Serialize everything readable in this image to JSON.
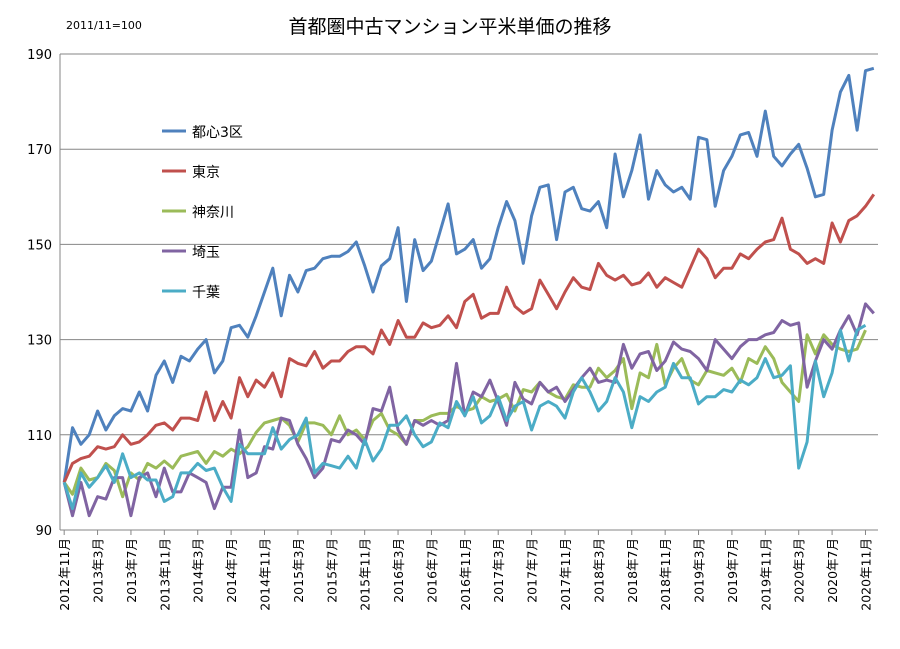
{
  "note": "2011/11=100",
  "chart_data": {
    "type": "line",
    "title": "首都圏中古マンション平米単価の推移",
    "ylim": [
      90,
      190
    ],
    "yticks": [
      90,
      110,
      130,
      150,
      170,
      190
    ],
    "xticks": [
      "2012年11月",
      "2013年3月",
      "2013年7月",
      "2013年11月",
      "2014年3月",
      "2014年7月",
      "2014年11月",
      "2015年3月",
      "2015年7月",
      "2015年11月",
      "2016年3月",
      "2016年7月",
      "2016年11月",
      "2017年3月",
      "2017年7月",
      "2017年11月",
      "2018年3月",
      "2018年7月",
      "2018年11月",
      "2019年3月",
      "2019年7月",
      "2019年11月",
      "2020年3月",
      "2020年7月",
      "2020年11月"
    ],
    "legend_position": "upper-left",
    "series": [
      {
        "name": "都心3区",
        "color": "#4F81BD",
        "values": [
          100,
          111.5,
          108,
          110,
          115,
          111,
          114,
          115.5,
          115,
          119,
          115,
          122.5,
          125.5,
          121,
          126.5,
          125.5,
          128,
          130,
          123,
          125.5,
          132.5,
          133,
          130.5,
          135,
          140,
          145,
          135,
          143.5,
          140,
          144.5,
          145,
          147,
          147.5,
          147.5,
          148.5,
          150.5,
          145.5,
          140,
          145.5,
          147,
          153.5,
          138,
          151,
          144.5,
          146.5,
          152.5,
          158.5,
          148,
          149,
          151,
          145,
          147,
          153.5,
          159,
          155,
          146,
          156,
          162,
          162.5,
          151,
          161,
          162,
          157.5,
          157,
          159,
          153.5,
          169,
          160,
          165.5,
          173,
          159.5,
          165.5,
          162.5,
          161,
          162,
          159.5,
          172.5,
          172,
          158,
          165.5,
          168.5,
          173,
          173.5,
          168.5,
          178,
          168.5,
          166.5,
          169,
          171,
          166,
          160,
          160.5,
          174,
          182,
          185.5,
          174,
          186.5,
          187
        ]
      },
      {
        "name": "東京",
        "color": "#C0504D",
        "values": [
          100,
          104,
          105,
          105.5,
          107.5,
          107,
          107.5,
          110,
          108,
          108.5,
          110,
          112,
          112.5,
          111,
          113.5,
          113.5,
          113,
          119,
          113,
          117,
          113.5,
          122,
          118,
          121.5,
          120,
          123,
          118,
          126,
          125,
          124.5,
          127.5,
          124,
          125.5,
          125.5,
          127.5,
          128.5,
          128.5,
          127,
          132,
          129,
          134,
          130.5,
          130.5,
          133.5,
          132.5,
          133,
          135,
          132.5,
          138,
          139.5,
          134.5,
          135.5,
          135.5,
          141,
          137,
          135.5,
          136.5,
          142.5,
          139.5,
          136.5,
          140,
          143,
          141,
          140.5,
          146,
          143.5,
          142.5,
          143.5,
          141.5,
          142,
          144,
          141,
          143,
          142,
          141,
          145,
          149,
          147,
          143,
          145,
          145,
          148,
          147,
          149,
          150.5,
          151,
          155.5,
          149,
          148,
          146,
          147,
          146,
          154.5,
          150.5,
          155,
          156,
          158,
          160.5
        ]
      },
      {
        "name": "神奈川",
        "color": "#9BBB59",
        "values": [
          100,
          97.5,
          103,
          100.5,
          101,
          104,
          102.5,
          97,
          102,
          100.5,
          104,
          103,
          104.5,
          103,
          105.5,
          106,
          106.5,
          104,
          106.5,
          105.5,
          107,
          106,
          107.5,
          110.5,
          112.5,
          113,
          113.5,
          112,
          108.5,
          112.5,
          112.5,
          112,
          110,
          114,
          110,
          111,
          109,
          113,
          114.5,
          111,
          110,
          108,
          113,
          113,
          114,
          114.5,
          114.5,
          116,
          115,
          115.5,
          118,
          117,
          117.5,
          118.5,
          115,
          119.5,
          119,
          121,
          119,
          118,
          117.5,
          120.5,
          120,
          120,
          124,
          122,
          123.5,
          126,
          115.5,
          123,
          122,
          129,
          120.5,
          124,
          126,
          121.5,
          120.5,
          123.5,
          123,
          122.5,
          124,
          121,
          126,
          125,
          128.5,
          126,
          121,
          119,
          117,
          131,
          127,
          131,
          129,
          128,
          127.5,
          128,
          132
        ]
      },
      {
        "name": "埼玉",
        "color": "#8064A2",
        "values": [
          100,
          93,
          100,
          93,
          97,
          96.5,
          101,
          101,
          93,
          101,
          102,
          97,
          103,
          98,
          98,
          102,
          101,
          100,
          94.5,
          99,
          99,
          111,
          101,
          102,
          107.5,
          107,
          113.5,
          113,
          108,
          105,
          101,
          103,
          109,
          108.5,
          111,
          110,
          108,
          115.5,
          115,
          120,
          111,
          108,
          113,
          112,
          113,
          112,
          113,
          125,
          114,
          119,
          118,
          121.5,
          117,
          112,
          121,
          117.5,
          116.5,
          121,
          119,
          120,
          117,
          119.5,
          122,
          124,
          121,
          121.5,
          121,
          129,
          124,
          127,
          127.5,
          123.5,
          125.5,
          129.5,
          128,
          127.5,
          126,
          123.5,
          130,
          128,
          126,
          128.5,
          130,
          130,
          131,
          131.5,
          134,
          133,
          133.5,
          120,
          125.5,
          130,
          128,
          132,
          135,
          131,
          137.5,
          135.5
        ]
      },
      {
        "name": "千葉",
        "color": "#4BACC6",
        "values": [
          100,
          94.5,
          102,
          99,
          101,
          103.5,
          100,
          106,
          101,
          102,
          100.5,
          100.5,
          96,
          97,
          102,
          102,
          104,
          102.5,
          103,
          99,
          96,
          108,
          106,
          106,
          106,
          111.5,
          107,
          109,
          110,
          113.5,
          102,
          104,
          103.5,
          103,
          105.5,
          103,
          109,
          104.5,
          107,
          112,
          112,
          114,
          110,
          107.5,
          108.5,
          112.5,
          111.5,
          117,
          114,
          118,
          112.5,
          114,
          118,
          113,
          116,
          117,
          111,
          116,
          117,
          116,
          113.5,
          119,
          122,
          119,
          115,
          117,
          122,
          119,
          111.5,
          118,
          117,
          119,
          120,
          125,
          122,
          122,
          116.5,
          118,
          118,
          119.5,
          119,
          121.5,
          120.5,
          122,
          126,
          122,
          122.5,
          124.5,
          103,
          108.5,
          125.5,
          118,
          123,
          132,
          125.5,
          132,
          133
        ]
      }
    ]
  }
}
